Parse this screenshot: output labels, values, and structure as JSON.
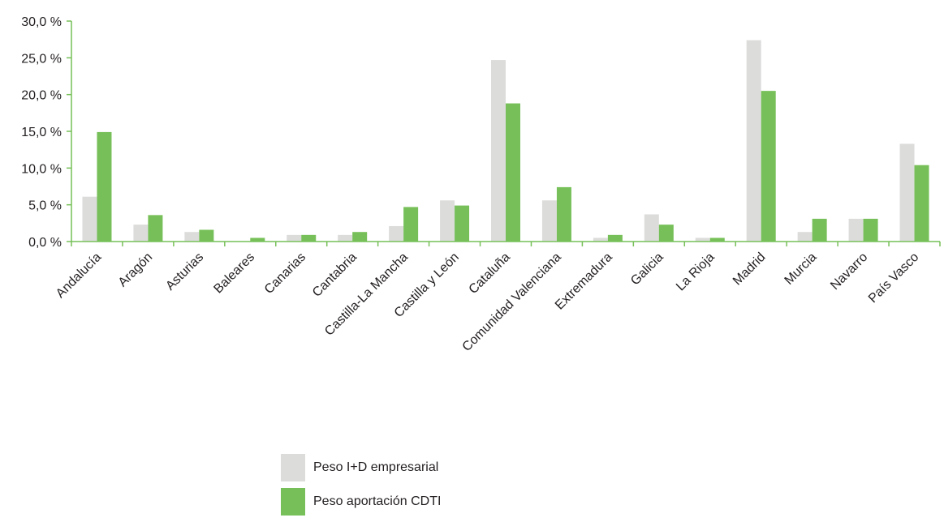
{
  "chart_data": {
    "type": "bar",
    "categories": [
      "Andalucía",
      "Aragón",
      "Asturias",
      "Baleares",
      "Canarias",
      "Cantabria",
      "Castilla-La Mancha",
      "Castilla y León",
      "Cataluña",
      "Comunidad Valenciana",
      "Extremadura",
      "Galicia",
      "La Rioja",
      "Madrid",
      "Murcia",
      "Navarro",
      "País Vasco"
    ],
    "series": [
      {
        "name": "Peso I+D empresarial",
        "color": "#dcdcdb",
        "values": [
          6.1,
          2.3,
          1.3,
          0.0,
          0.9,
          0.9,
          2.1,
          5.6,
          24.7,
          5.6,
          0.5,
          3.7,
          0.5,
          27.4,
          1.3,
          3.1,
          13.3
        ]
      },
      {
        "name": "Peso aportación CDTI",
        "color": "#77c059",
        "values": [
          14.9,
          3.6,
          1.6,
          0.5,
          0.9,
          1.3,
          4.7,
          4.9,
          18.8,
          7.4,
          0.9,
          2.3,
          0.5,
          20.5,
          3.1,
          3.1,
          10.4
        ]
      }
    ],
    "yticks": [
      "0,0 %",
      "5,0 %",
      "10,0 %",
      "15,0 %",
      "20,0 %",
      "25,0 %",
      "30,0 %"
    ],
    "ylim": [
      0,
      30
    ],
    "axis_color": "#77c059",
    "grid": false,
    "legend_position": "bottom-center"
  }
}
